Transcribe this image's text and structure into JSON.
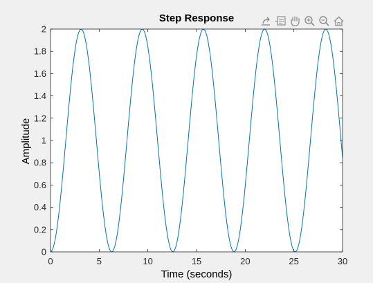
{
  "toolbar": {
    "icons": [
      "export-icon",
      "data-cursor-icon",
      "pan-icon",
      "zoom-in-icon",
      "zoom-out-icon",
      "home-icon"
    ]
  },
  "colors": {
    "line": "#0072BD",
    "background": "#f0f0f0",
    "axes_background": "#ffffff",
    "axes": "#262626"
  },
  "chart_data": {
    "type": "line",
    "title": "Step Response",
    "xlabel": "Time (seconds)",
    "ylabel": "Amplitude",
    "xlim": [
      0,
      30
    ],
    "ylim": [
      0,
      2
    ],
    "xticks": [
      0,
      5,
      10,
      15,
      20,
      25,
      30
    ],
    "yticks": [
      0,
      0.2,
      0.4,
      0.6,
      0.8,
      1,
      1.2,
      1.4,
      1.6,
      1.8,
      2
    ],
    "xtick_labels": [
      "0",
      "5",
      "10",
      "15",
      "20",
      "25",
      "30"
    ],
    "ytick_labels": [
      "0",
      "0.2",
      "0.4",
      "0.6",
      "0.8",
      "1",
      "1.2",
      "1.4",
      "1.6",
      "1.8",
      "2"
    ],
    "grid": false,
    "legend": false,
    "series": [
      {
        "function": "1 - cos(t)",
        "x_range": [
          0,
          30
        ],
        "samples": 301,
        "peaks_at": [
          3.14,
          9.42,
          15.71,
          21.99,
          28.27
        ],
        "peak_value": 2,
        "min_value": 0,
        "end_value": 0.85
      }
    ]
  }
}
